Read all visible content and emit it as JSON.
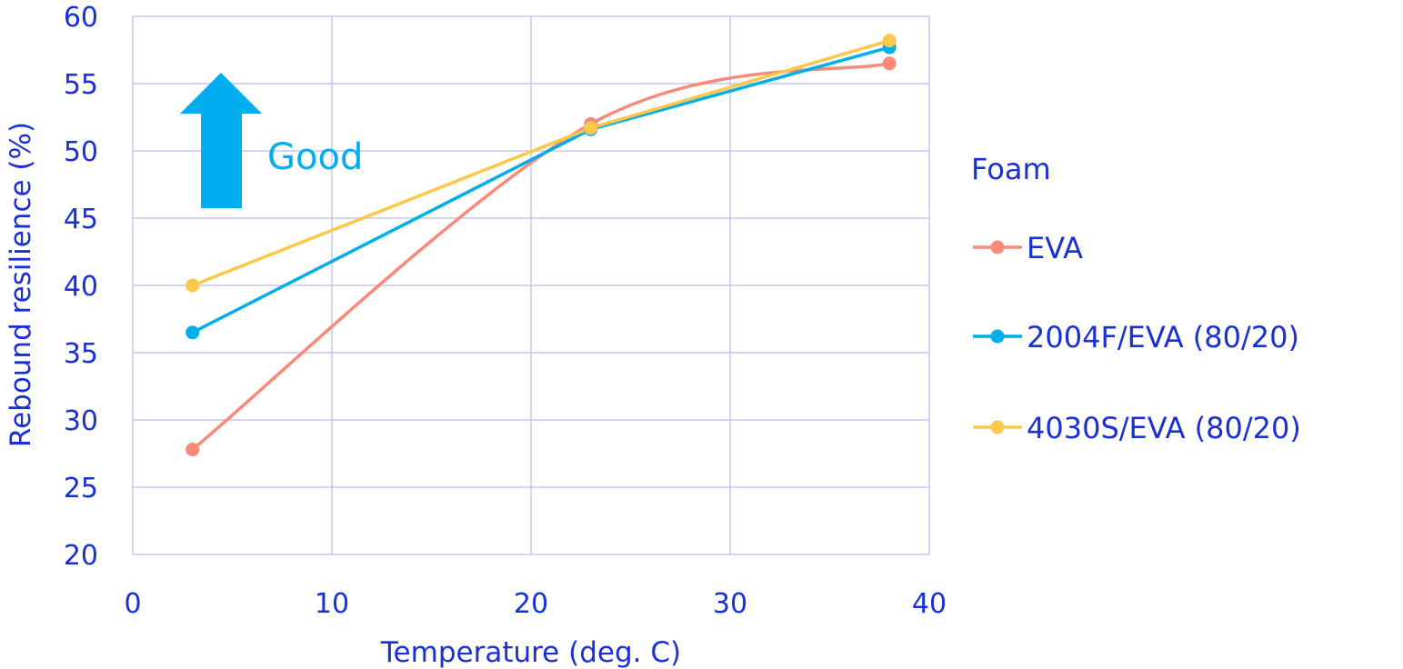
{
  "chart_data": {
    "type": "line",
    "xlabel": "Temperature (deg. C)",
    "ylabel": "Rebound resilience (%)",
    "xlim": [
      0,
      40
    ],
    "ylim": [
      20,
      60
    ],
    "x_ticks": [
      "0",
      "10",
      "20",
      "30",
      "40"
    ],
    "y_ticks": [
      "20",
      "25",
      "30",
      "35",
      "40",
      "45",
      "50",
      "55",
      "60"
    ],
    "grid": true,
    "legend_title": "Foam",
    "legend_position": "right",
    "annotation": {
      "text": "Good",
      "icon": "up-arrow-icon",
      "color": "#00aeef"
    },
    "series": [
      {
        "name": "EVA",
        "color": "#f98a7a",
        "smooth": true,
        "x": [
          3,
          23,
          38
        ],
        "y": [
          27.8,
          52.0,
          56.5
        ]
      },
      {
        "name": "2004F/EVA (80/20)",
        "color": "#00aee8",
        "smooth": false,
        "x": [
          3,
          23,
          38
        ],
        "y": [
          36.5,
          51.6,
          57.7
        ]
      },
      {
        "name": "4030S/EVA (80/20)",
        "color": "#fcc84a",
        "smooth": false,
        "x": [
          3,
          23,
          38
        ],
        "y": [
          40.0,
          51.7,
          58.2
        ]
      }
    ],
    "grid_color": "#c3c9ef",
    "text_color": "#1a2fd6"
  }
}
